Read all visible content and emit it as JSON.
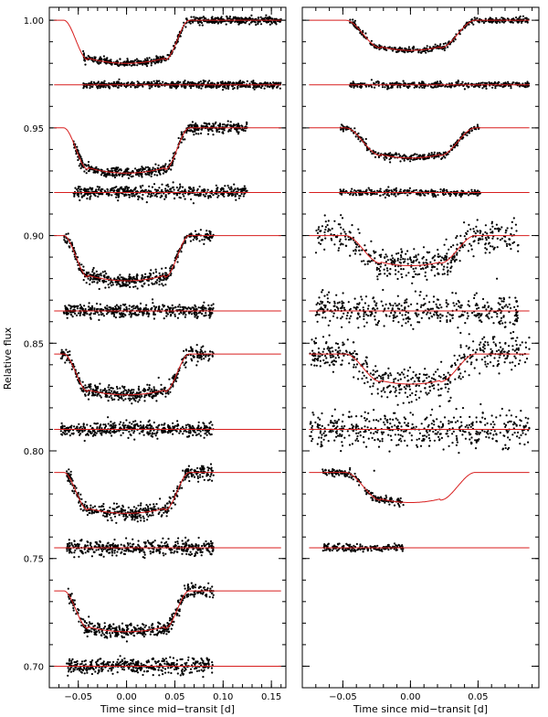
{
  "chart_data": {
    "type": "scatter",
    "ylabel": "Relative flux",
    "panels": [
      {
        "xlabel": "Time since mid−transit [d]",
        "xlim": [
          -0.08,
          0.165
        ],
        "ylim": [
          0.69,
          1.006
        ],
        "xticks": [
          -0.05,
          0.0,
          0.05,
          0.1,
          0.15
        ],
        "xtick_labels": [
          "−0.05",
          "0.00",
          "0.05",
          "0.10",
          "0.15"
        ],
        "yticks": [
          0.7,
          0.75,
          0.8,
          0.85,
          0.9,
          0.95,
          1.0
        ],
        "ytick_labels": [
          "0.70",
          "0.75",
          "0.80",
          "0.85",
          "0.90",
          "0.95",
          "1.00"
        ],
        "light_curves": [
          {
            "baseline": 1.0,
            "depth": 0.02,
            "data_range": [
              -0.045,
              0.16
            ],
            "scatter": 0.0008,
            "residual_baseline": 0.97,
            "residual_range": [
              -0.045,
              0.16
            ],
            "residual_scatter": 0.0008
          },
          {
            "baseline": 0.95,
            "depth": 0.021,
            "data_range": [
              -0.055,
              0.125
            ],
            "scatter": 0.0012,
            "residual_baseline": 0.92,
            "residual_range": [
              -0.055,
              0.125
            ],
            "residual_scatter": 0.0015
          },
          {
            "baseline": 0.9,
            "depth": 0.021,
            "data_range": [
              -0.065,
              0.09
            ],
            "scatter": 0.0015,
            "residual_baseline": 0.865,
            "residual_range": [
              -0.065,
              0.09
            ],
            "residual_scatter": 0.0015
          },
          {
            "baseline": 0.845,
            "depth": 0.019,
            "data_range": [
              -0.068,
              0.09
            ],
            "scatter": 0.0017,
            "residual_baseline": 0.81,
            "residual_range": [
              -0.068,
              0.09
            ],
            "residual_scatter": 0.0017
          },
          {
            "baseline": 0.79,
            "depth": 0.019,
            "data_range": [
              -0.062,
              0.09
            ],
            "scatter": 0.0017,
            "residual_baseline": 0.755,
            "residual_range": [
              -0.062,
              0.09
            ],
            "residual_scatter": 0.0017
          },
          {
            "baseline": 0.735,
            "depth": 0.019,
            "data_range": [
              -0.062,
              0.09
            ],
            "scatter": 0.0017,
            "residual_baseline": 0.7,
            "residual_range": [
              -0.062,
              0.09
            ],
            "residual_scatter": 0.0017
          }
        ],
        "model_range": [
          -0.075,
          0.16
        ],
        "ingress_start": -0.065,
        "ingress_end": -0.04,
        "egress_start": 0.04,
        "egress_end": 0.065
      },
      {
        "xlabel": "Time since mid−transit [d]",
        "xlim": [
          -0.08,
          0.095
        ],
        "ylim": [
          0.69,
          1.006
        ],
        "xticks": [
          -0.05,
          0.0,
          0.05
        ],
        "xtick_labels": [
          "−0.05",
          "0.00",
          "0.05"
        ],
        "yticks": [
          0.7,
          0.75,
          0.8,
          0.85,
          0.9,
          0.95,
          1.0
        ],
        "light_curves": [
          {
            "baseline": 1.0,
            "depth": 0.014,
            "data_range": [
              -0.045,
              0.088
            ],
            "scatter": 0.0007,
            "residual_baseline": 0.97,
            "residual_range": [
              -0.045,
              0.088
            ],
            "residual_scatter": 0.0007
          },
          {
            "baseline": 0.95,
            "depth": 0.014,
            "data_range": [
              -0.052,
              0.052
            ],
            "scatter": 0.0008,
            "residual_baseline": 0.92,
            "residual_range": [
              -0.052,
              0.052
            ],
            "residual_scatter": 0.0008
          },
          {
            "baseline": 0.9,
            "depth": 0.014,
            "data_range": [
              -0.07,
              0.08
            ],
            "scatter": 0.0035,
            "residual_baseline": 0.865,
            "residual_range": [
              -0.07,
              0.08
            ],
            "residual_scatter": 0.0035
          },
          {
            "baseline": 0.845,
            "depth": 0.014,
            "data_range": [
              -0.075,
              0.088
            ],
            "scatter": 0.004,
            "residual_baseline": 0.81,
            "residual_range": [
              -0.075,
              0.088
            ],
            "residual_scatter": 0.004
          },
          {
            "baseline": 0.79,
            "depth": 0.014,
            "data_range": [
              -0.065,
              -0.005
            ],
            "scatter": 0.0009,
            "residual_baseline": 0.755,
            "residual_range": [
              -0.065,
              -0.005
            ],
            "residual_scatter": 0.0009
          }
        ],
        "model_range": [
          -0.075,
          0.088
        ],
        "ingress_start": -0.048,
        "ingress_end": -0.022,
        "egress_start": 0.022,
        "egress_end": 0.048
      }
    ]
  }
}
